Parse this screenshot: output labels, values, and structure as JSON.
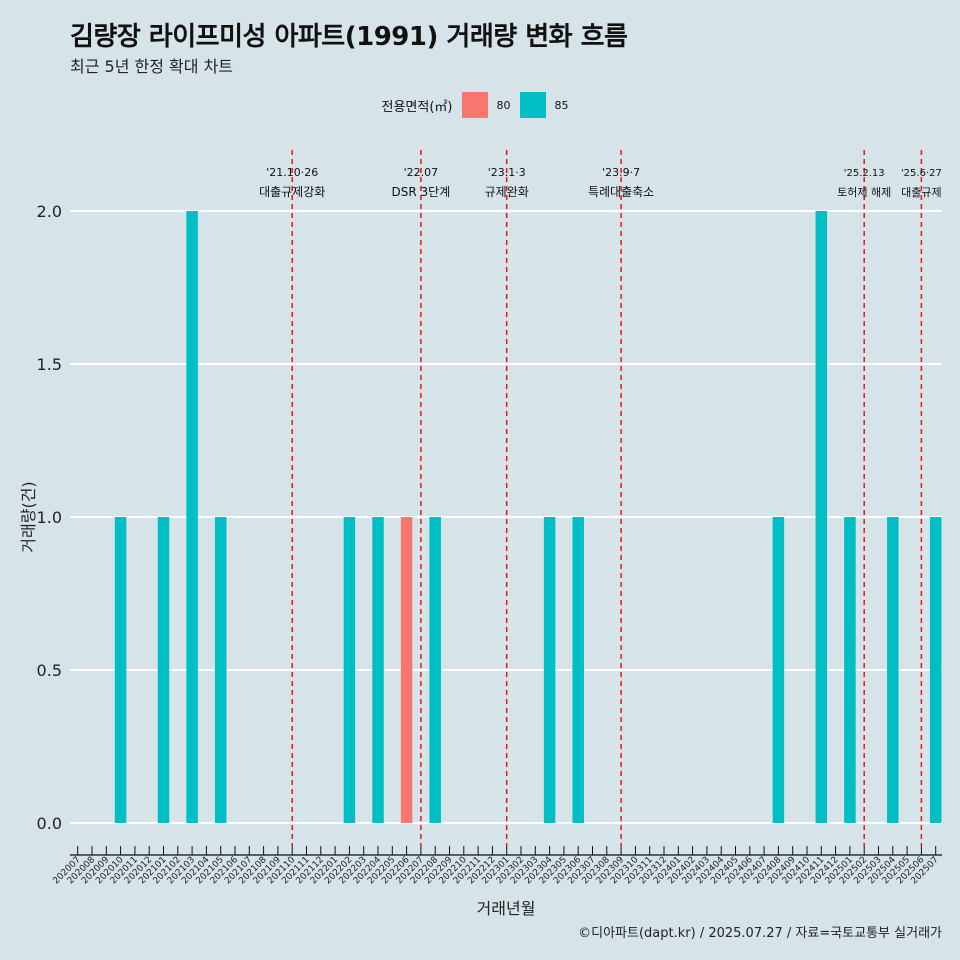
{
  "title": "김량장 라이프미성 아파트(1991) 거래량 변화 흐름",
  "subtitle": "최근 5년 한정 확대 차트",
  "caption": "©디아파트(dapt.kr) / 2025.07.27 / 자료=국토교통부 실거래가",
  "colors": {
    "s80": "#f8766d",
    "s85": "#00bfc4",
    "event": "#e8141a",
    "background": "#d6e4ea",
    "grid": "#ffffff"
  },
  "chart_data": {
    "type": "bar",
    "xlabel": "거래년월",
    "ylabel": "거래량(건)",
    "ylim": [
      0,
      2
    ],
    "yticks": [
      "0.0",
      "0.5",
      "1.0",
      "1.5",
      "2.0"
    ],
    "legend_title": "전용면적(㎡)",
    "legend_position": "top",
    "categories": [
      "202007",
      "202008",
      "202009",
      "202010",
      "202011",
      "202012",
      "202101",
      "202102",
      "202103",
      "202104",
      "202105",
      "202106",
      "202107",
      "202108",
      "202109",
      "202110",
      "202111",
      "202112",
      "202201",
      "202202",
      "202203",
      "202204",
      "202205",
      "202206",
      "202207",
      "202208",
      "202209",
      "202210",
      "202211",
      "202212",
      "202301",
      "202302",
      "202303",
      "202304",
      "202305",
      "202306",
      "202307",
      "202308",
      "202309",
      "202310",
      "202311",
      "202312",
      "202401",
      "202402",
      "202403",
      "202404",
      "202405",
      "202406",
      "202407",
      "202408",
      "202409",
      "202410",
      "202411",
      "202412",
      "202501",
      "202502",
      "202503",
      "202504",
      "202505",
      "202506",
      "202507"
    ],
    "series": [
      {
        "name": "80",
        "bars": [
          {
            "x": "202206",
            "y": 1
          }
        ]
      },
      {
        "name": "85",
        "bars": [
          {
            "x": "202010",
            "y": 1
          },
          {
            "x": "202101",
            "y": 1
          },
          {
            "x": "202103",
            "y": 2
          },
          {
            "x": "202105",
            "y": 1
          },
          {
            "x": "202202",
            "y": 1
          },
          {
            "x": "202204",
            "y": 1
          },
          {
            "x": "202208",
            "y": 1
          },
          {
            "x": "202304",
            "y": 1
          },
          {
            "x": "202306",
            "y": 1
          },
          {
            "x": "202408",
            "y": 1
          },
          {
            "x": "202411",
            "y": 2
          },
          {
            "x": "202501",
            "y": 1
          },
          {
            "x": "202504",
            "y": 1
          },
          {
            "x": "202507",
            "y": 1
          }
        ]
      }
    ],
    "events": [
      {
        "x": "202110",
        "date": "'21.10·26",
        "label": "대출규제강화"
      },
      {
        "x": "202207",
        "date": "'22.07",
        "label": "DSR 3단계"
      },
      {
        "x": "202301",
        "date": "'23.1·3",
        "label": "규제완화"
      },
      {
        "x": "202309",
        "date": "'23.9·7",
        "label": "특례대출축소"
      },
      {
        "x": "202502",
        "date": "'25.2.13",
        "label": "토허제 해제"
      },
      {
        "x": "202506",
        "date": "'25.6·27",
        "label": "대출규제"
      }
    ]
  }
}
